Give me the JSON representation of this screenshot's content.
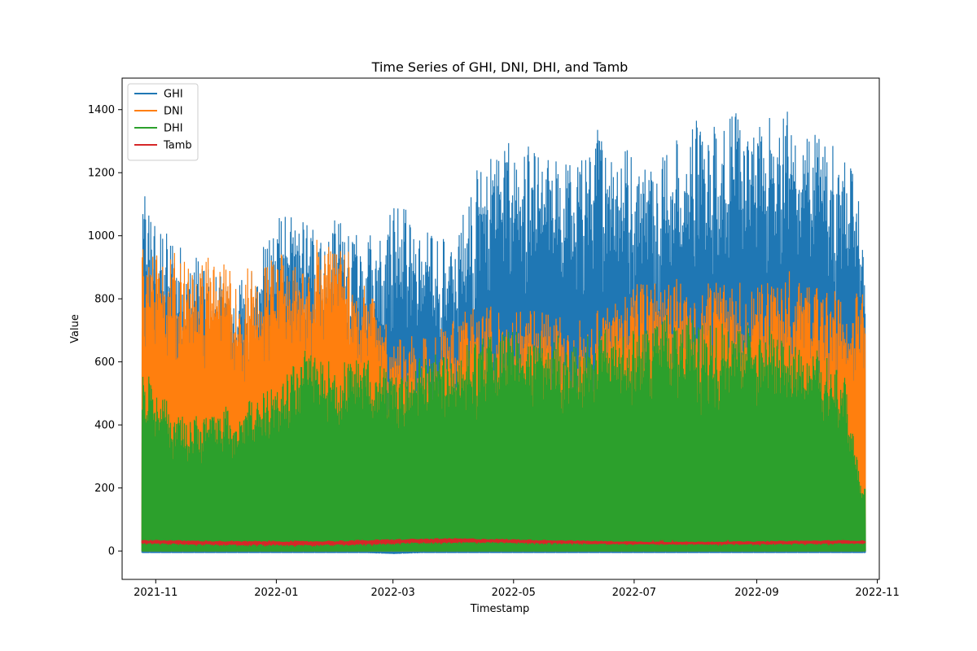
{
  "chart_data": {
    "type": "line",
    "title": "Time Series of GHI, DNI, DHI, and Tamb",
    "xlabel": "Timestamp",
    "ylabel": "Value",
    "x_range": [
      "2021-10-15",
      "2022-11-02"
    ],
    "ylim": [
      -90,
      1500
    ],
    "xticks": [
      {
        "label": "2021-11",
        "date": "2021-11-01"
      },
      {
        "label": "2022-01",
        "date": "2022-01-01"
      },
      {
        "label": "2022-03",
        "date": "2022-03-01"
      },
      {
        "label": "2022-05",
        "date": "2022-05-01"
      },
      {
        "label": "2022-07",
        "date": "2022-07-01"
      },
      {
        "label": "2022-09",
        "date": "2022-09-01"
      },
      {
        "label": "2022-11",
        "date": "2022-11-01"
      }
    ],
    "yticks": [
      0,
      200,
      400,
      600,
      800,
      1000,
      1200,
      1400
    ],
    "grid": false,
    "legend_position": "top-left",
    "series": [
      {
        "name": "GHI",
        "color": "#1f77b4",
        "x": [
          "2021-10-25",
          "2021-11-01",
          "2021-11-15",
          "2021-12-01",
          "2021-12-15",
          "2022-01-01",
          "2022-01-15",
          "2022-02-01",
          "2022-02-15",
          "2022-03-01",
          "2022-03-15",
          "2022-04-01",
          "2022-04-15",
          "2022-05-01",
          "2022-05-15",
          "2022-06-01",
          "2022-06-15",
          "2022-07-01",
          "2022-07-15",
          "2022-08-01",
          "2022-08-15",
          "2022-09-01",
          "2022-09-15",
          "2022-10-01",
          "2022-10-15",
          "2022-10-25"
        ],
        "max": [
          1140,
          1040,
          960,
          900,
          890,
          1070,
          1050,
          1050,
          980,
          1150,
          1020,
          1000,
          1270,
          1300,
          1270,
          1230,
          1390,
          1250,
          1310,
          1380,
          1420,
          1350,
          1420,
          1330,
          1280,
          1100
        ],
        "min": [
          -5,
          -5,
          -5,
          -5,
          -5,
          -5,
          -5,
          -5,
          -5,
          -8,
          -5,
          -5,
          -5,
          -5,
          -5,
          -5,
          -5,
          -5,
          -5,
          -5,
          -5,
          -5,
          -5,
          -5,
          -5,
          -5
        ]
      },
      {
        "name": "DNI",
        "color": "#ff7f0e",
        "x": [
          "2021-10-25",
          "2021-11-01",
          "2021-11-15",
          "2021-12-01",
          "2021-12-15",
          "2022-01-01",
          "2022-01-15",
          "2022-02-01",
          "2022-02-15",
          "2022-03-01",
          "2022-03-15",
          "2022-04-01",
          "2022-04-15",
          "2022-05-01",
          "2022-05-15",
          "2022-06-01",
          "2022-06-15",
          "2022-07-01",
          "2022-07-15",
          "2022-08-01",
          "2022-08-15",
          "2022-09-01",
          "2022-09-15",
          "2022-10-01",
          "2022-10-15",
          "2022-10-25"
        ],
        "max": [
          990,
          960,
          950,
          930,
          900,
          940,
          980,
          1000,
          860,
          700,
          680,
          750,
          780,
          780,
          760,
          740,
          780,
          860,
          870,
          860,
          870,
          860,
          890,
          870,
          830,
          820
        ],
        "min": [
          0,
          0,
          0,
          0,
          0,
          0,
          0,
          0,
          0,
          0,
          0,
          0,
          0,
          0,
          0,
          0,
          0,
          0,
          0,
          0,
          0,
          0,
          0,
          0,
          0,
          0
        ]
      },
      {
        "name": "DHI",
        "color": "#2ca02c",
        "x": [
          "2021-10-25",
          "2021-11-01",
          "2021-11-15",
          "2021-12-01",
          "2021-12-15",
          "2022-01-01",
          "2022-01-15",
          "2022-02-01",
          "2022-02-15",
          "2022-03-01",
          "2022-03-15",
          "2022-04-01",
          "2022-04-15",
          "2022-05-01",
          "2022-05-15",
          "2022-06-01",
          "2022-06-15",
          "2022-07-01",
          "2022-07-15",
          "2022-08-01",
          "2022-08-15",
          "2022-09-01",
          "2022-09-15",
          "2022-10-01",
          "2022-10-15",
          "2022-10-25"
        ],
        "max": [
          590,
          520,
          420,
          450,
          480,
          520,
          640,
          600,
          620,
          560,
          620,
          650,
          680,
          700,
          690,
          680,
          720,
          700,
          760,
          740,
          720,
          730,
          720,
          650,
          560,
          200
        ],
        "min": [
          0,
          0,
          0,
          0,
          0,
          0,
          0,
          0,
          0,
          0,
          0,
          0,
          0,
          0,
          0,
          0,
          0,
          0,
          0,
          0,
          0,
          0,
          0,
          0,
          0,
          0
        ]
      },
      {
        "name": "Tamb",
        "color": "#d62728",
        "x": [
          "2021-10-25",
          "2021-11-01",
          "2021-11-15",
          "2021-12-01",
          "2021-12-15",
          "2022-01-01",
          "2022-01-15",
          "2022-02-01",
          "2022-02-15",
          "2022-03-01",
          "2022-03-15",
          "2022-04-01",
          "2022-04-15",
          "2022-05-01",
          "2022-05-15",
          "2022-06-01",
          "2022-06-15",
          "2022-07-01",
          "2022-07-15",
          "2022-08-01",
          "2022-08-15",
          "2022-09-01",
          "2022-09-15",
          "2022-10-01",
          "2022-10-15",
          "2022-10-25"
        ],
        "max": [
          35,
          36,
          34,
          33,
          32,
          33,
          32,
          34,
          36,
          38,
          40,
          41,
          40,
          38,
          36,
          34,
          32,
          31,
          30,
          30,
          31,
          31,
          33,
          34,
          35,
          34
        ],
        "min": [
          24,
          24,
          22,
          20,
          19,
          19,
          18,
          19,
          21,
          24,
          26,
          27,
          27,
          26,
          25,
          24,
          23,
          22,
          22,
          22,
          22,
          22,
          23,
          23,
          24,
          24
        ]
      }
    ]
  }
}
